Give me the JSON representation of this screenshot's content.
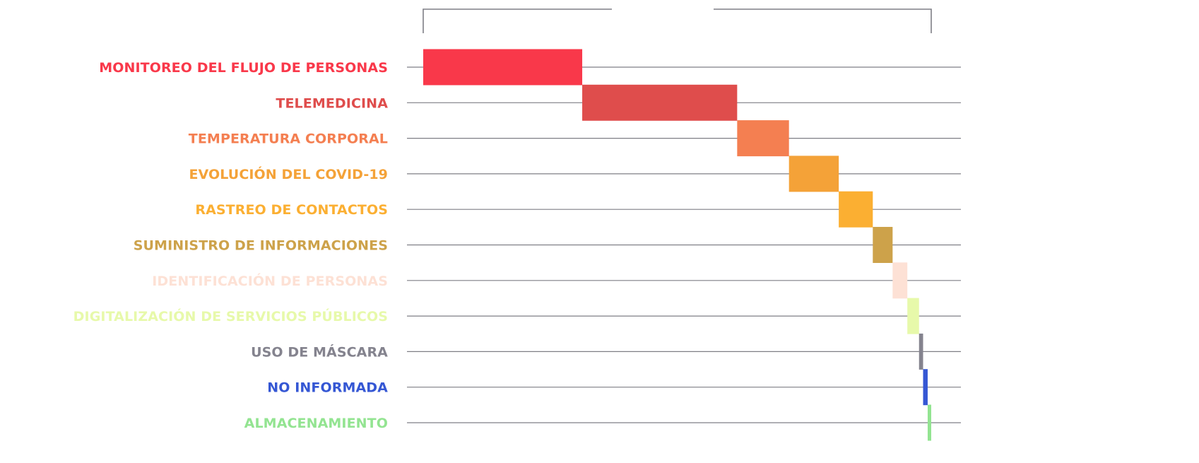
{
  "chart_data": {
    "type": "waterfall",
    "title": "",
    "xlabel": "",
    "ylabel": "",
    "grid": true,
    "legend": "none",
    "axis_color": "#7f7f86",
    "categories": [
      {
        "label": "MONITOREO DEL FLUJO DE PERSONAS",
        "start": 0,
        "end": 31.3,
        "color": "#f9384a"
      },
      {
        "label": "TELEMEDICINA",
        "start": 31.3,
        "end": 61.8,
        "color": "#df4d4c"
      },
      {
        "label": "TEMPERATURA CORPORAL",
        "start": 61.8,
        "end": 72.0,
        "color": "#f47f51"
      },
      {
        "label": "EVOLUCIÓN DEL COVID-19",
        "start": 72.0,
        "end": 81.8,
        "color": "#f4a238"
      },
      {
        "label": "RASTREO DE CONTACTOS",
        "start": 81.8,
        "end": 88.5,
        "color": "#fbaf32"
      },
      {
        "label": "SUMINISTRO DE INFORMACIONES",
        "start": 88.5,
        "end": 92.4,
        "color": "#cda24a"
      },
      {
        "label": "IDENTIFICACIÓN DE PERSONAS",
        "start": 92.4,
        "end": 95.3,
        "color": "#fde1d5"
      },
      {
        "label": "DIGITALIZACIÓN DE SERVICIOS PÚBLICOS",
        "start": 95.3,
        "end": 97.6,
        "color": "#e7f9aa"
      },
      {
        "label": "USO DE MÁSCARA",
        "start": 97.6,
        "end": 98.4,
        "color": "#84838e"
      },
      {
        "label": "NO INFORMADA",
        "start": 98.4,
        "end": 99.3,
        "color": "#3557d4"
      },
      {
        "label": "ALMACENAMIENTO",
        "start": 99.3,
        "end": 100.0,
        "color": "#93e491"
      }
    ],
    "xlim": [
      0,
      100
    ]
  }
}
